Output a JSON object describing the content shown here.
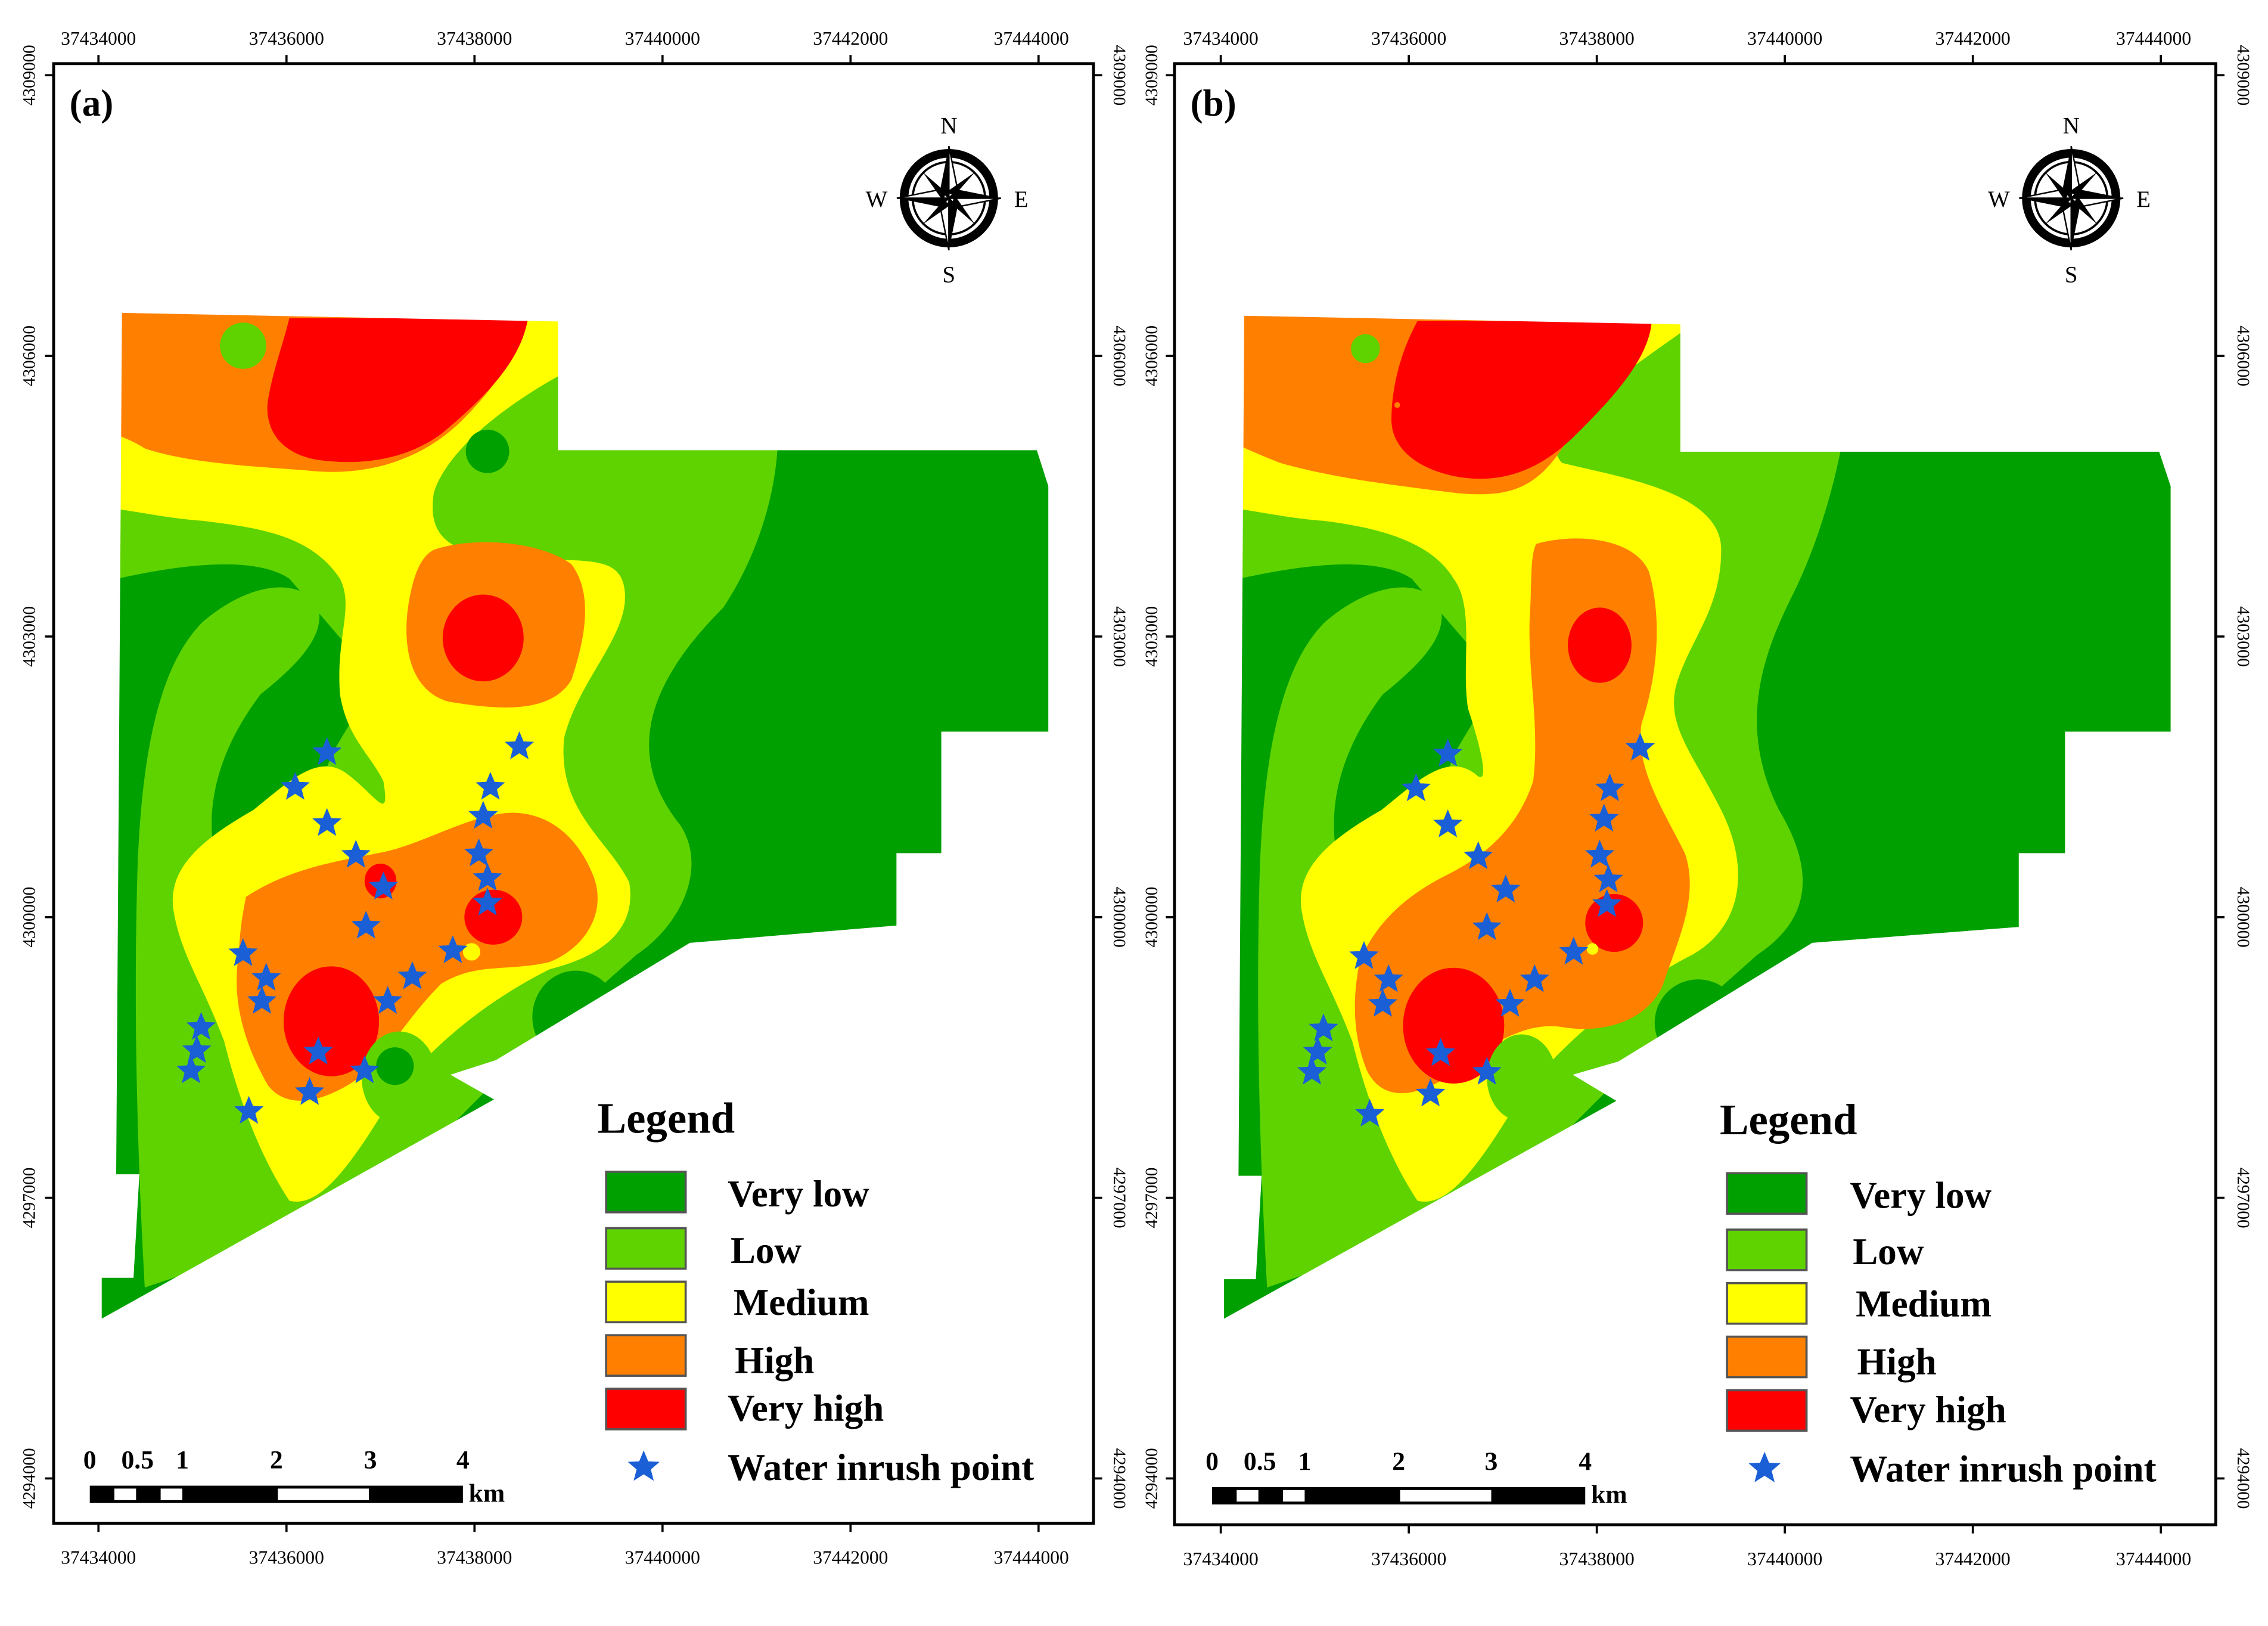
{
  "panels": [
    {
      "id": "a",
      "label": "(a)",
      "x_ticks": [
        "37434000",
        "37436000",
        "37438000",
        "37440000",
        "37442000",
        "37444000"
      ],
      "y_ticks": [
        "4309000",
        "4306000",
        "4303000",
        "4300000",
        "4297000",
        "4294000"
      ],
      "compass": {
        "n": "N",
        "s": "S",
        "e": "E",
        "w": "W"
      },
      "legend": {
        "title": "Legend",
        "items": [
          {
            "label": "Very low",
            "color": "#00a000"
          },
          {
            "label": "Low",
            "color": "#5fd300"
          },
          {
            "label": "Medium",
            "color": "#ffff00"
          },
          {
            "label": "High",
            "color": "#ff8000"
          },
          {
            "label": "Very high",
            "color": "#ff0000"
          }
        ],
        "point_label": "Water inrush point",
        "point_color": "#1a5fd6"
      },
      "scale_bar": {
        "labels": [
          "0",
          "0.5",
          "1",
          "2",
          "3",
          "4"
        ],
        "unit": "km"
      }
    },
    {
      "id": "b",
      "label": "(b)",
      "x_ticks": [
        "37434000",
        "37436000",
        "37438000",
        "37440000",
        "37442000",
        "37444000"
      ],
      "y_ticks": [
        "4309000",
        "4306000",
        "4303000",
        "4300000",
        "4297000",
        "4294000"
      ],
      "compass": {
        "n": "N",
        "s": "S",
        "e": "E",
        "w": "W"
      },
      "legend": {
        "title": "Legend",
        "items": [
          {
            "label": "Very low",
            "color": "#00a000"
          },
          {
            "label": "Low",
            "color": "#5fd300"
          },
          {
            "label": "Medium",
            "color": "#ffff00"
          },
          {
            "label": "High",
            "color": "#ff8000"
          },
          {
            "label": "Very high",
            "color": "#ff0000"
          }
        ],
        "point_label": "Water inrush point",
        "point_color": "#1a5fd6"
      },
      "scale_bar": {
        "labels": [
          "0",
          "0.5",
          "1",
          "2",
          "3",
          "4"
        ],
        "unit": "km"
      }
    }
  ]
}
